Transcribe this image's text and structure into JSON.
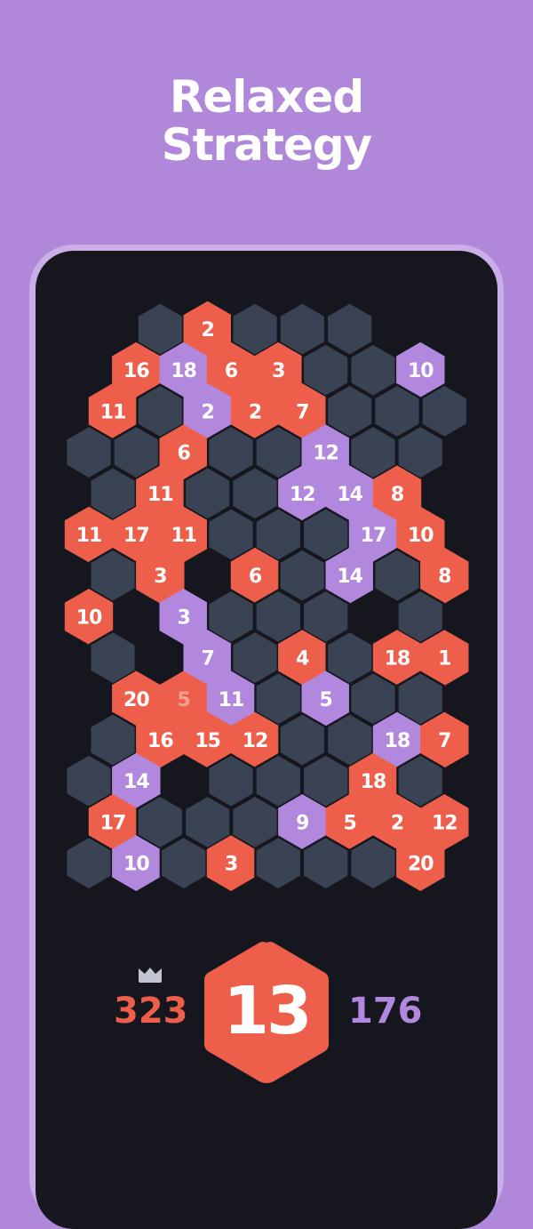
{
  "title": {
    "line1": "Relaxed",
    "line2": "Strategy"
  },
  "colors": {
    "background": "#b088d9",
    "empty_cell": "#394354",
    "player_red": "#ee5f4b",
    "player_purple": "#b287de",
    "board_bg": "#16171e"
  },
  "board": {
    "legend": {
      "d": "unclaimed cell",
      "r": "red tile",
      "p": "purple tile",
      "null": "no cell"
    },
    "rows": [
      [
        null,
        "d",
        "r:2",
        "d",
        "d",
        "d",
        null,
        null
      ],
      [
        null,
        "r:16",
        "p:18",
        "r:6",
        "r:3",
        "d",
        "d",
        "p:10"
      ],
      [
        "r:11",
        "d",
        "p:2",
        "r:2",
        "r:7",
        "d",
        "d",
        "d"
      ],
      [
        "d",
        "d",
        "r:6",
        "d",
        "d",
        "p:12",
        "d",
        "d"
      ],
      [
        "d",
        "r:11",
        "d",
        "d",
        "p:12",
        "p:14",
        "r:8",
        null
      ],
      [
        "r:11",
        "r:17",
        "r:11",
        "d",
        "d",
        "d",
        "p:17",
        "r:10"
      ],
      [
        "d",
        "r:3",
        null,
        "r:6",
        "d",
        "p:14",
        "d",
        "r:8"
      ],
      [
        "r:10",
        null,
        "p:3",
        "d",
        "d",
        "d",
        null,
        "d"
      ],
      [
        "d",
        null,
        "p:7",
        "d",
        "r:4",
        "d",
        "r:18",
        "r:1"
      ],
      [
        null,
        "r:20",
        "f:5",
        "p:11",
        "d",
        "p:5",
        "d",
        "d"
      ],
      [
        "d",
        "r:16",
        "r:15",
        "r:12",
        "d",
        "d",
        "p:18",
        "r:7"
      ],
      [
        "d",
        "p:14",
        null,
        "d",
        "d",
        "d",
        "r:18",
        "d"
      ],
      [
        "r:17",
        "d",
        "d",
        "d",
        "p:9",
        "r:5",
        "r:2",
        "r:12"
      ],
      [
        "d",
        "p:10",
        "d",
        "r:3",
        "d",
        "d",
        "d",
        "r:20"
      ]
    ]
  },
  "scores": {
    "red": "323",
    "purple": "176",
    "leader_icon": "crown-icon"
  },
  "current_tile": {
    "value": "13",
    "color": "#ee5f4b"
  }
}
